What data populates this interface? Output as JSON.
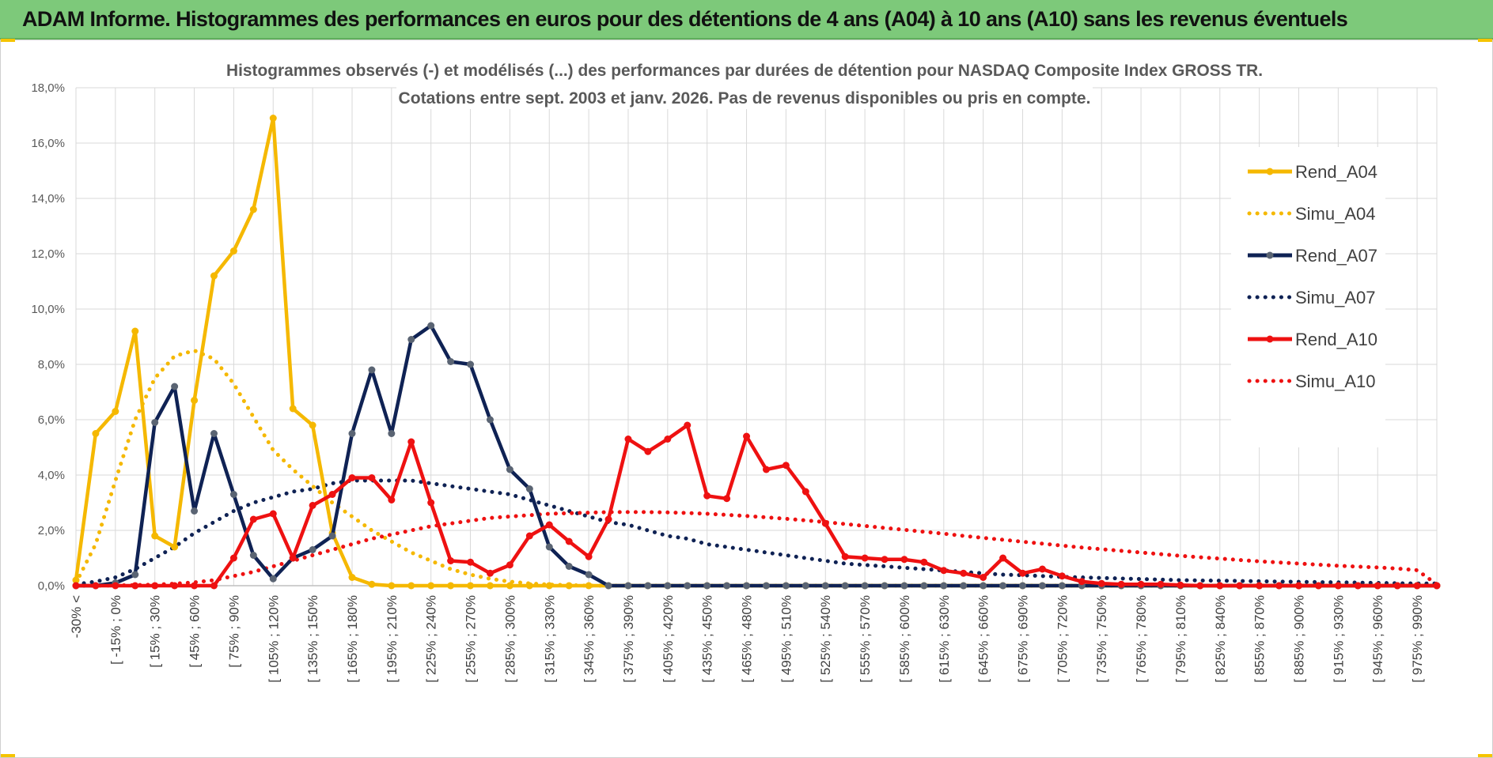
{
  "banner": {
    "title": "ADAM Informe. Histogrammes des performances en euros pour des détentions de 4 ans (A04) à 10 ans (A10) sans les revenus éventuels"
  },
  "colors": {
    "banner": "#7dc97a",
    "a04": "#f5b800",
    "a07": "#0f2254",
    "a10": "#ee1111",
    "grid": "#d9d9d9"
  },
  "chart_data": {
    "type": "line",
    "title": "Histogrammes observés (-) et modélisés (...) des performances par durées de détention pour NASDAQ Composite Index GROSS TR.",
    "subtitle": "Cotations entre sept. 2003 et janv. 2026. Pas de revenus disponibles ou pris en compte.",
    "xlabel": "",
    "ylabel": "",
    "ylim": [
      0,
      18
    ],
    "yticks": [
      "0,0%",
      "2,0%",
      "4,0%",
      "6,0%",
      "8,0%",
      "10,0%",
      "12,0%",
      "14,0%",
      "16,0%",
      "18,0%"
    ],
    "legend_position": "right",
    "tick_labels": [
      "-30% <",
      "[ -15% ; 0%",
      "[ 15% ; 30%",
      "[ 45% ; 60%",
      "[ 75% ; 90%",
      "[ 105% ; 120%",
      "[ 135% ; 150%",
      "[ 165% ; 180%",
      "[ 195% ; 210%",
      "[ 225% ; 240%",
      "[ 255% ; 270%",
      "[ 285% ; 300%",
      "[ 315% ; 330%",
      "[ 345% ; 360%",
      "[ 375% ; 390%",
      "[ 405% ; 420%",
      "[ 435% ; 450%",
      "[ 465% ; 480%",
      "[ 495% ; 510%",
      "[ 525% ; 540%",
      "[ 555% ; 570%",
      "[ 585% ; 600%",
      "[ 615% ; 630%",
      "[ 645% ; 660%",
      "[ 675% ; 690%",
      "[ 705% ; 720%",
      "[ 735% ; 750%",
      "[ 765% ; 780%",
      "[ 795% ; 810%",
      "[ 825% ; 840%",
      "[ 855% ; 870%",
      "[ 885% ; 900%",
      "[ 915% ; 930%",
      "[ 945% ; 960%",
      "[ 975% ; 990%"
    ],
    "n_points": 70,
    "series": [
      {
        "name": "Rend_A04",
        "style": "solid",
        "color": "#f5b800",
        "values": [
          0.2,
          5.5,
          6.3,
          9.2,
          1.8,
          1.4,
          6.7,
          11.2,
          12.1,
          13.6,
          16.9,
          6.4,
          5.8,
          1.9,
          0.3,
          0.05,
          0,
          0,
          0,
          0,
          0,
          0,
          0,
          0,
          0,
          0,
          0,
          0,
          0,
          0,
          0,
          0,
          0,
          0,
          0,
          0,
          0,
          0,
          0,
          0,
          0,
          0,
          0,
          0,
          0,
          0,
          0,
          0,
          0,
          0,
          0,
          0,
          0,
          0,
          0,
          0,
          0,
          0,
          0,
          0,
          0,
          0,
          0,
          0,
          0,
          0,
          0,
          0,
          0,
          0
        ]
      },
      {
        "name": "Simu_A04",
        "style": "dotted",
        "color": "#f5b800",
        "values": [
          0.1,
          1.5,
          3.8,
          6.0,
          7.5,
          8.3,
          8.5,
          8.2,
          7.3,
          6.1,
          4.9,
          4.2,
          3.6,
          3.0,
          2.5,
          2.0,
          1.6,
          1.2,
          0.9,
          0.6,
          0.4,
          0.25,
          0.15,
          0.08,
          0.04,
          0.02,
          0,
          0,
          0,
          0,
          0,
          0,
          0,
          0,
          0,
          0,
          0,
          0,
          0,
          0,
          0,
          0,
          0,
          0,
          0,
          0,
          0,
          0,
          0,
          0,
          0,
          0,
          0,
          0,
          0,
          0,
          0,
          0,
          0,
          0,
          0,
          0,
          0,
          0,
          0,
          0,
          0,
          0,
          0,
          0
        ]
      },
      {
        "name": "Rend_A07",
        "style": "solid",
        "color": "#0f2254",
        "values": [
          0,
          0,
          0.1,
          0.4,
          5.9,
          7.2,
          2.7,
          5.5,
          3.3,
          1.1,
          0.25,
          1.0,
          1.3,
          1.8,
          5.5,
          7.8,
          5.5,
          8.9,
          9.4,
          8.1,
          8.0,
          6.0,
          4.2,
          3.5,
          1.4,
          0.7,
          0.4,
          0,
          0,
          0,
          0,
          0,
          0,
          0,
          0,
          0,
          0,
          0,
          0,
          0,
          0,
          0,
          0,
          0,
          0,
          0,
          0,
          0,
          0,
          0,
          0,
          0,
          0,
          0,
          0,
          0,
          0,
          0,
          0,
          0,
          0,
          0,
          0,
          0,
          0,
          0,
          0,
          0,
          0,
          0
        ]
      },
      {
        "name": "Simu_A07",
        "style": "dotted",
        "color": "#0f2254",
        "values": [
          0.05,
          0.15,
          0.3,
          0.6,
          1.0,
          1.4,
          1.9,
          2.3,
          2.7,
          3.0,
          3.2,
          3.4,
          3.5,
          3.7,
          3.8,
          3.8,
          3.8,
          3.8,
          3.7,
          3.6,
          3.5,
          3.4,
          3.3,
          3.1,
          2.9,
          2.7,
          2.5,
          2.3,
          2.2,
          2.0,
          1.8,
          1.7,
          1.5,
          1.4,
          1.3,
          1.2,
          1.1,
          1.0,
          0.9,
          0.8,
          0.75,
          0.7,
          0.65,
          0.6,
          0.55,
          0.5,
          0.45,
          0.4,
          0.38,
          0.35,
          0.32,
          0.3,
          0.28,
          0.26,
          0.24,
          0.22,
          0.2,
          0.19,
          0.18,
          0.17,
          0.16,
          0.15,
          0.14,
          0.13,
          0.12,
          0.11,
          0.1,
          0.09,
          0.08,
          0.08
        ]
      },
      {
        "name": "Rend_A10",
        "style": "solid",
        "color": "#ee1111",
        "values": [
          0,
          0,
          0,
          0,
          0,
          0,
          0,
          0,
          1.0,
          2.4,
          2.6,
          1.0,
          2.9,
          3.3,
          3.9,
          3.9,
          3.1,
          5.2,
          3.0,
          0.9,
          0.85,
          0.45,
          0.75,
          1.8,
          2.2,
          1.6,
          1.05,
          2.4,
          5.3,
          4.85,
          5.3,
          5.8,
          3.25,
          3.15,
          5.4,
          4.2,
          4.35,
          3.4,
          2.25,
          1.05,
          1.0,
          0.95,
          0.95,
          0.85,
          0.55,
          0.45,
          0.3,
          1.0,
          0.45,
          0.6,
          0.35,
          0.15,
          0.08,
          0.05,
          0.05,
          0.05,
          0.02,
          0,
          0,
          0,
          0,
          0,
          0,
          0,
          0,
          0,
          0,
          0,
          0,
          0
        ]
      },
      {
        "name": "Simu_A10",
        "style": "dotted",
        "color": "#ee1111",
        "values": [
          0,
          0,
          0.01,
          0.02,
          0.04,
          0.07,
          0.12,
          0.2,
          0.35,
          0.5,
          0.7,
          0.9,
          1.1,
          1.3,
          1.5,
          1.7,
          1.85,
          2.0,
          2.15,
          2.25,
          2.35,
          2.45,
          2.5,
          2.55,
          2.6,
          2.62,
          2.64,
          2.66,
          2.66,
          2.66,
          2.65,
          2.63,
          2.6,
          2.56,
          2.52,
          2.47,
          2.42,
          2.36,
          2.3,
          2.23,
          2.16,
          2.09,
          2.02,
          1.95,
          1.88,
          1.8,
          1.73,
          1.66,
          1.59,
          1.52,
          1.45,
          1.38,
          1.32,
          1.26,
          1.2,
          1.14,
          1.08,
          1.03,
          0.98,
          0.93,
          0.88,
          0.84,
          0.8,
          0.76,
          0.72,
          0.69,
          0.66,
          0.62,
          0.56,
          0.05
        ]
      }
    ]
  }
}
